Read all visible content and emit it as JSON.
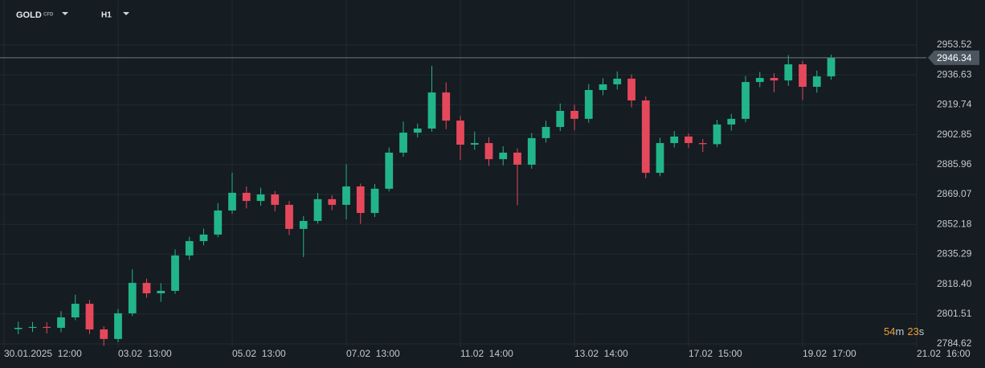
{
  "header": {
    "symbol": "GOLD",
    "symbol_tag": "CFD",
    "timeframe": "H1"
  },
  "timer": {
    "minutes": "54",
    "minutes_unit": "m",
    "seconds": "23",
    "seconds_unit": "s"
  },
  "chart_data": {
    "type": "candlestick",
    "x": [
      6,
      12,
      18,
      24,
      30,
      36,
      42,
      48,
      54,
      60,
      66,
      72,
      78,
      84,
      90,
      96,
      102,
      108,
      114,
      120,
      126,
      132,
      138,
      144,
      150,
      156,
      162,
      168,
      174,
      180,
      186,
      192,
      198,
      204,
      210,
      216,
      222,
      228,
      234,
      240,
      246,
      252,
      258,
      264,
      270,
      276,
      282,
      288,
      294,
      300,
      306,
      312,
      318,
      324,
      330,
      336,
      342,
      348
    ],
    "open": [
      2793.0,
      2793.7,
      2794.2,
      2793.7,
      2799.6,
      2807.3,
      2792.8,
      2787.4,
      2801.9,
      2819.1,
      2813.2,
      2814.6,
      2834.6,
      2842.7,
      2846.4,
      2860.0,
      2870.0,
      2865.4,
      2869.1,
      2863.2,
      2849.6,
      2854.1,
      2866.4,
      2863.2,
      2873.6,
      2858.6,
      2872.3,
      2892.7,
      2904.0,
      2906.3,
      2926.7,
      2910.8,
      2897.2,
      2898.1,
      2889.0,
      2892.7,
      2885.9,
      2900.9,
      2907.2,
      2916.3,
      2911.8,
      2928.1,
      2931.3,
      2934.5,
      2922.2,
      2881.3,
      2898.1,
      2901.8,
      2898.1,
      2897.5,
      2908.6,
      2911.8,
      2932.6,
      2934.9,
      2933.5,
      2942.6,
      2929.9,
      2935.8
    ],
    "high": [
      2797.2,
      2797.0,
      2796.8,
      2803.1,
      2812.4,
      2809.5,
      2794.6,
      2804.3,
      2826.8,
      2821.5,
      2818.9,
      2838.0,
      2845.1,
      2849.8,
      2864.2,
      2881.4,
      2873.6,
      2872.9,
      2871.0,
      2865.3,
      2856.8,
      2869.9,
      2868.7,
      2886.1,
      2875.2,
      2875.0,
      2895.6,
      2910.3,
      2909.1,
      2941.7,
      2932.4,
      2913.5,
      2904.6,
      2901.4,
      2896.3,
      2895.1,
      2903.8,
      2910.7,
      2920.5,
      2919.8,
      2931.4,
      2934.7,
      2938.6,
      2936.9,
      2924.5,
      2901.0,
      2904.9,
      2903.5,
      2900.4,
      2911.2,
      2914.6,
      2936.0,
      2938.3,
      2937.6,
      2947.8,
      2944.5,
      2939.1,
      2948.0
    ],
    "low": [
      2790.1,
      2791.3,
      2790.5,
      2791.2,
      2798.0,
      2790.2,
      2783.5,
      2785.6,
      2800.4,
      2810.7,
      2808.4,
      2812.9,
      2832.0,
      2840.3,
      2844.9,
      2858.1,
      2861.2,
      2862.7,
      2859.5,
      2846.2,
      2833.7,
      2852.6,
      2860.1,
      2855.0,
      2852.4,
      2856.3,
      2870.8,
      2890.4,
      2901.2,
      2904.5,
      2906.0,
      2888.6,
      2894.3,
      2885.2,
      2885.5,
      2863.0,
      2883.6,
      2898.4,
      2904.9,
      2905.3,
      2909.6,
      2925.2,
      2928.4,
      2918.3,
      2878.2,
      2879.4,
      2895.6,
      2895.3,
      2893.0,
      2895.8,
      2905.1,
      2909.9,
      2929.7,
      2926.8,
      2930.4,
      2922.4,
      2926.6,
      2933.9
    ],
    "close": [
      2793.7,
      2794.2,
      2793.7,
      2799.6,
      2807.3,
      2792.8,
      2787.4,
      2801.9,
      2819.1,
      2813.2,
      2814.6,
      2834.6,
      2842.7,
      2846.4,
      2860.0,
      2870.0,
      2865.4,
      2869.1,
      2863.2,
      2849.6,
      2854.1,
      2866.4,
      2863.2,
      2873.6,
      2858.6,
      2872.3,
      2892.7,
      2904.0,
      2906.3,
      2926.7,
      2910.8,
      2897.2,
      2898.1,
      2889.0,
      2892.7,
      2885.9,
      2900.9,
      2907.2,
      2916.3,
      2911.8,
      2928.1,
      2931.3,
      2934.5,
      2922.2,
      2881.3,
      2898.1,
      2901.8,
      2898.1,
      2897.5,
      2908.6,
      2911.8,
      2932.6,
      2934.9,
      2933.5,
      2942.6,
      2929.9,
      2935.8,
      2946.34
    ],
    "last_price": 2946.34,
    "up_color": "#22b58a",
    "down_color": "#e5485a",
    "xlim": [
      0,
      384
    ],
    "xticks": [
      {
        "value": 0,
        "label": "30.01.2025  12:00"
      },
      {
        "value": 48,
        "label": "03.02  13:00"
      },
      {
        "value": 96,
        "label": "05.02  13:00"
      },
      {
        "value": 144,
        "label": "07.02  13:00"
      },
      {
        "value": 192,
        "label": "11.02  14:00"
      },
      {
        "value": 240,
        "label": "13.02  14:00"
      },
      {
        "value": 288,
        "label": "17.02  15:00"
      },
      {
        "value": 336,
        "label": "19.02  17:00"
      },
      {
        "value": 384,
        "label": "21.02  16:00"
      }
    ],
    "ylim": [
      2782.8,
      2978.95
    ],
    "yticks": [
      2784.62,
      2801.51,
      {
        "value": 2818.4,
        "label": "2818.40"
      },
      2835.29,
      2852.18,
      2869.07,
      2885.96,
      2902.85,
      2919.74,
      2936.63,
      2953.52
    ],
    "grid": true
  }
}
